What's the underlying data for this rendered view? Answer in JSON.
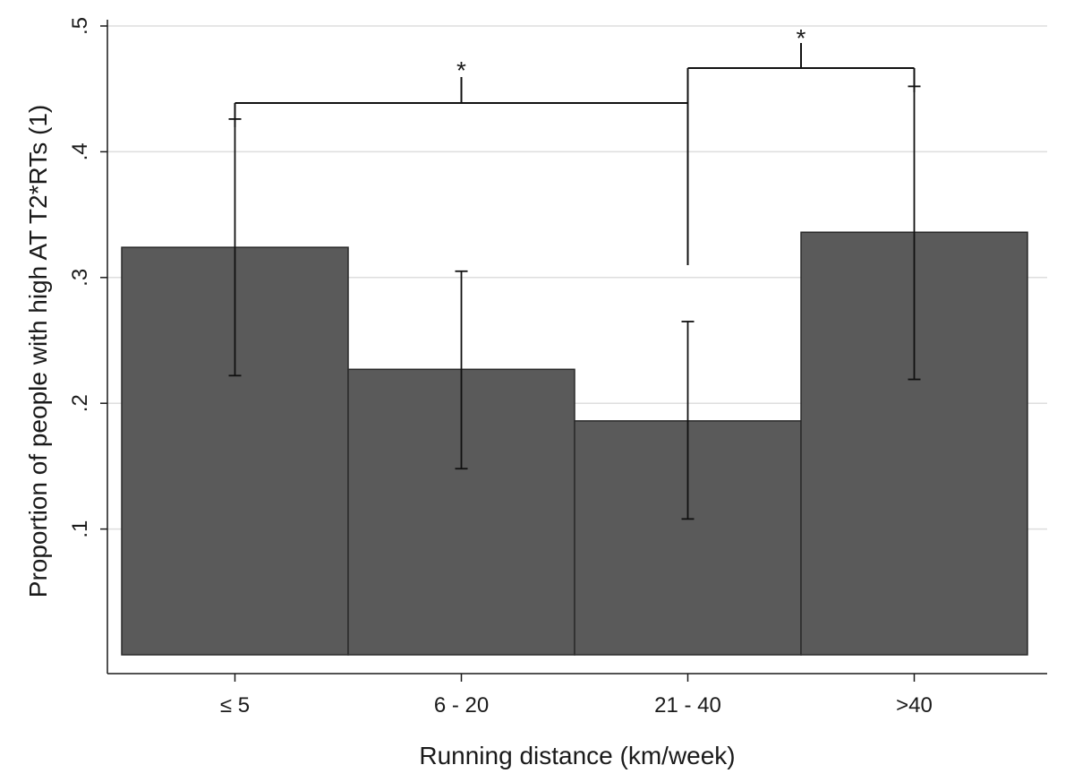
{
  "chart_data": {
    "type": "bar",
    "title": "",
    "xlabel": "Running distance (km/week)",
    "ylabel": "Proportion of people with high AT T2*RTs (1)",
    "categories": [
      "≤ 5",
      "6 - 20",
      "21 - 40",
      ">40"
    ],
    "values": [
      0.324,
      0.227,
      0.186,
      0.336
    ],
    "error_low": [
      0.222,
      0.148,
      0.108,
      0.219
    ],
    "error_high": [
      0.426,
      0.305,
      0.265,
      0.452
    ],
    "ylim": [
      0,
      0.505
    ],
    "yticks": [
      0.1,
      0.2,
      0.3,
      0.4,
      0.5
    ],
    "ytick_labels": [
      ".1",
      ".2",
      ".3",
      ".4",
      ".5"
    ],
    "grid": true,
    "bar_color": "#5a5a5a",
    "significance": [
      {
        "left": [
          0
        ],
        "right": [
          2,
          3
        ],
        "label": "*"
      },
      {
        "left": [
          2
        ],
        "right": [
          3
        ],
        "label": "*"
      }
    ]
  }
}
